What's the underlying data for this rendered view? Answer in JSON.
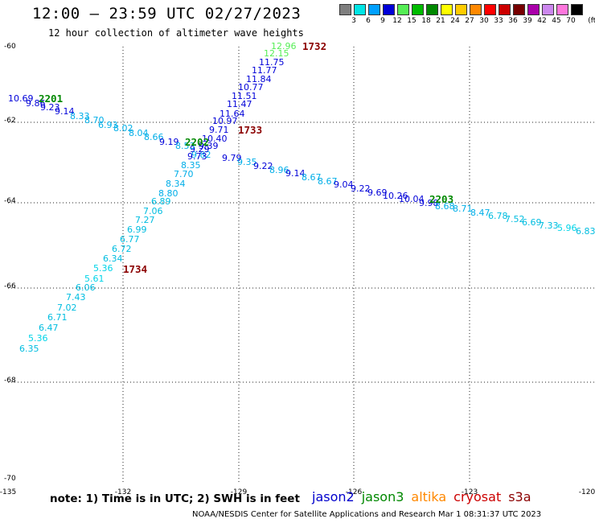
{
  "header": {
    "title": "12:00 – 23:59 UTC 02/27/2023",
    "subtitle": "12 hour collection of altimeter wave heights"
  },
  "legend": {
    "unit": "(ft)",
    "bins": [
      {
        "label": "3",
        "color": "#7f7f7f"
      },
      {
        "label": "6",
        "color": "#00e5e5"
      },
      {
        "label": "9",
        "color": "#00a0ff"
      },
      {
        "label": "12",
        "color": "#0000d8"
      },
      {
        "label": "15",
        "color": "#55ee55"
      },
      {
        "label": "18",
        "color": "#00bb00"
      },
      {
        "label": "21",
        "color": "#008800"
      },
      {
        "label": "24",
        "color": "#ffff00"
      },
      {
        "label": "27",
        "color": "#ffcc00"
      },
      {
        "label": "30",
        "color": "#ff8800"
      },
      {
        "label": "33",
        "color": "#ff0000"
      },
      {
        "label": "36",
        "color": "#cc0000"
      },
      {
        "label": "39",
        "color": "#770000"
      },
      {
        "label": "42",
        "color": "#aa00aa"
      },
      {
        "label": "45",
        "color": "#cc88ee"
      },
      {
        "label": "70",
        "color": "#ff77dd"
      },
      {
        "label": "",
        "color": "#000000"
      }
    ]
  },
  "map": {
    "lon_range": [
      -135,
      -120
    ],
    "lat_range": [
      -70,
      -60
    ],
    "lon_labels": [
      "-135",
      "-132",
      "-129",
      "-126",
      "-123",
      "-120"
    ],
    "lat_labels": [
      "-60",
      "-62",
      "-64",
      "-66",
      "-68",
      "-70"
    ],
    "gridlines": true
  },
  "tracks": [
    {
      "id": "track-a",
      "label_color": "#00c8e0",
      "points": [
        {
          "text": "6.35",
          "color": "#00bde0"
        },
        {
          "text": "5.36",
          "color": "#00d4e8"
        },
        {
          "text": "6.47",
          "color": "#00bde0"
        },
        {
          "text": "6.71",
          "color": "#00bde0"
        },
        {
          "text": "7.02",
          "color": "#00bde0"
        },
        {
          "text": "7.43",
          "color": "#00bde0"
        },
        {
          "text": "6.06",
          "color": "#00bde0"
        },
        {
          "text": "5.61",
          "color": "#00d4e8"
        },
        {
          "text": "5.36",
          "color": "#00d4e8"
        },
        {
          "text": "6.34",
          "color": "#00bde0"
        },
        {
          "text": "6.72",
          "color": "#00bde0"
        },
        {
          "text": "6.77",
          "color": "#00bde0"
        },
        {
          "text": "6.99",
          "color": "#00bde0"
        },
        {
          "text": "7.27",
          "color": "#00bde0"
        },
        {
          "text": "7.06",
          "color": "#00bde0"
        },
        {
          "text": "6.89",
          "color": "#00bde0"
        },
        {
          "text": "8.80",
          "color": "#00aee8"
        },
        {
          "text": "8.34",
          "color": "#00aee8"
        },
        {
          "text": "7.70",
          "color": "#00aee8"
        },
        {
          "text": "8.35",
          "color": "#00aee8"
        },
        {
          "text": "9.82",
          "color": "#00aee8"
        },
        {
          "text": "9.73",
          "color": "#0000d8"
        },
        {
          "text": "9.29",
          "color": "#0000d8"
        },
        {
          "text": "9.39",
          "color": "#0000d8"
        },
        {
          "text": "10.40",
          "color": "#0000d8"
        },
        {
          "text": "9.71",
          "color": "#0000d8"
        },
        {
          "text": "10.97",
          "color": "#0000d8"
        },
        {
          "text": "11.64",
          "color": "#0000d8"
        },
        {
          "text": "11.47",
          "color": "#0000d8"
        },
        {
          "text": "11.51",
          "color": "#0000d8"
        },
        {
          "text": "10.77",
          "color": "#0000d8"
        },
        {
          "text": "11.84",
          "color": "#0000d8"
        },
        {
          "text": "11.77",
          "color": "#0000d8"
        },
        {
          "text": "11.75",
          "color": "#0000d8"
        },
        {
          "text": "12.15",
          "color": "#55ee55"
        },
        {
          "text": "12.96",
          "color": "#55ee55"
        }
      ]
    },
    {
      "id": "track-b",
      "points": [
        {
          "text": "10.69",
          "color": "#0000d8"
        },
        {
          "text": "9.86",
          "color": "#0000d8"
        },
        {
          "text": "9.23",
          "color": "#0000d8"
        },
        {
          "text": "9.14",
          "color": "#0000d8"
        },
        {
          "text": "8.33",
          "color": "#00aee8"
        },
        {
          "text": "8.70",
          "color": "#00aee8"
        },
        {
          "text": "6.93",
          "color": "#00aee8"
        },
        {
          "text": "8.02",
          "color": "#00aee8"
        },
        {
          "text": "8.04",
          "color": "#00aee8"
        },
        {
          "text": "8.66",
          "color": "#00aee8"
        },
        {
          "text": "9.19",
          "color": "#0000d8"
        },
        {
          "text": "8.53",
          "color": "#00aee8"
        },
        {
          "text": "9.79",
          "color": "#0000d8"
        },
        {
          "text": "9.35",
          "color": "#00aee8"
        },
        {
          "text": "9.22",
          "color": "#0000d8"
        },
        {
          "text": "8.96",
          "color": "#00aee8"
        },
        {
          "text": "9.14",
          "color": "#0000d8"
        },
        {
          "text": "8.67",
          "color": "#00aee8"
        },
        {
          "text": "8.67",
          "color": "#00aee8"
        },
        {
          "text": "9.04",
          "color": "#0000d8"
        },
        {
          "text": "9.22",
          "color": "#0000d8"
        },
        {
          "text": "9.69",
          "color": "#0000d8"
        },
        {
          "text": "10.26",
          "color": "#0000d8"
        },
        {
          "text": "10.04",
          "color": "#0000d8"
        },
        {
          "text": "9.98",
          "color": "#0000d8"
        },
        {
          "text": "8.68",
          "color": "#00aee8"
        },
        {
          "text": "8.71",
          "color": "#00aee8"
        },
        {
          "text": "8.47",
          "color": "#00aee8"
        },
        {
          "text": "6.78",
          "color": "#00bde0"
        },
        {
          "text": "7.52",
          "color": "#00bde0"
        },
        {
          "text": "6.69",
          "color": "#00bde0"
        },
        {
          "text": "7.33",
          "color": "#00bde0"
        },
        {
          "text": "5.96",
          "color": "#00d4e8"
        },
        {
          "text": "6.83",
          "color": "#00bde0"
        }
      ]
    }
  ],
  "time_stamps": [
    {
      "text": "1732",
      "color": "#8b0000"
    },
    {
      "text": "1733",
      "color": "#8b0000"
    },
    {
      "text": "1734",
      "color": "#8b0000"
    },
    {
      "text": "2201",
      "color": "#008800"
    },
    {
      "text": "2202",
      "color": "#008800"
    },
    {
      "text": "2203",
      "color": "#008800"
    }
  ],
  "footer": {
    "note": "note:  1) Time is in UTC;  2) SWH is in feet",
    "missions": [
      {
        "name": "jason2",
        "color": "#0000cc"
      },
      {
        "name": "jason3",
        "color": "#008800"
      },
      {
        "name": "altika",
        "color": "#ff8800"
      },
      {
        "name": "cryosat",
        "color": "#cc0000"
      },
      {
        "name": "s3a",
        "color": "#8b0000"
      }
    ],
    "credit": "NOAA/NESDIS Center for Satellite Applications and Research    Mar  1 08:31:37 UTC 2023"
  }
}
